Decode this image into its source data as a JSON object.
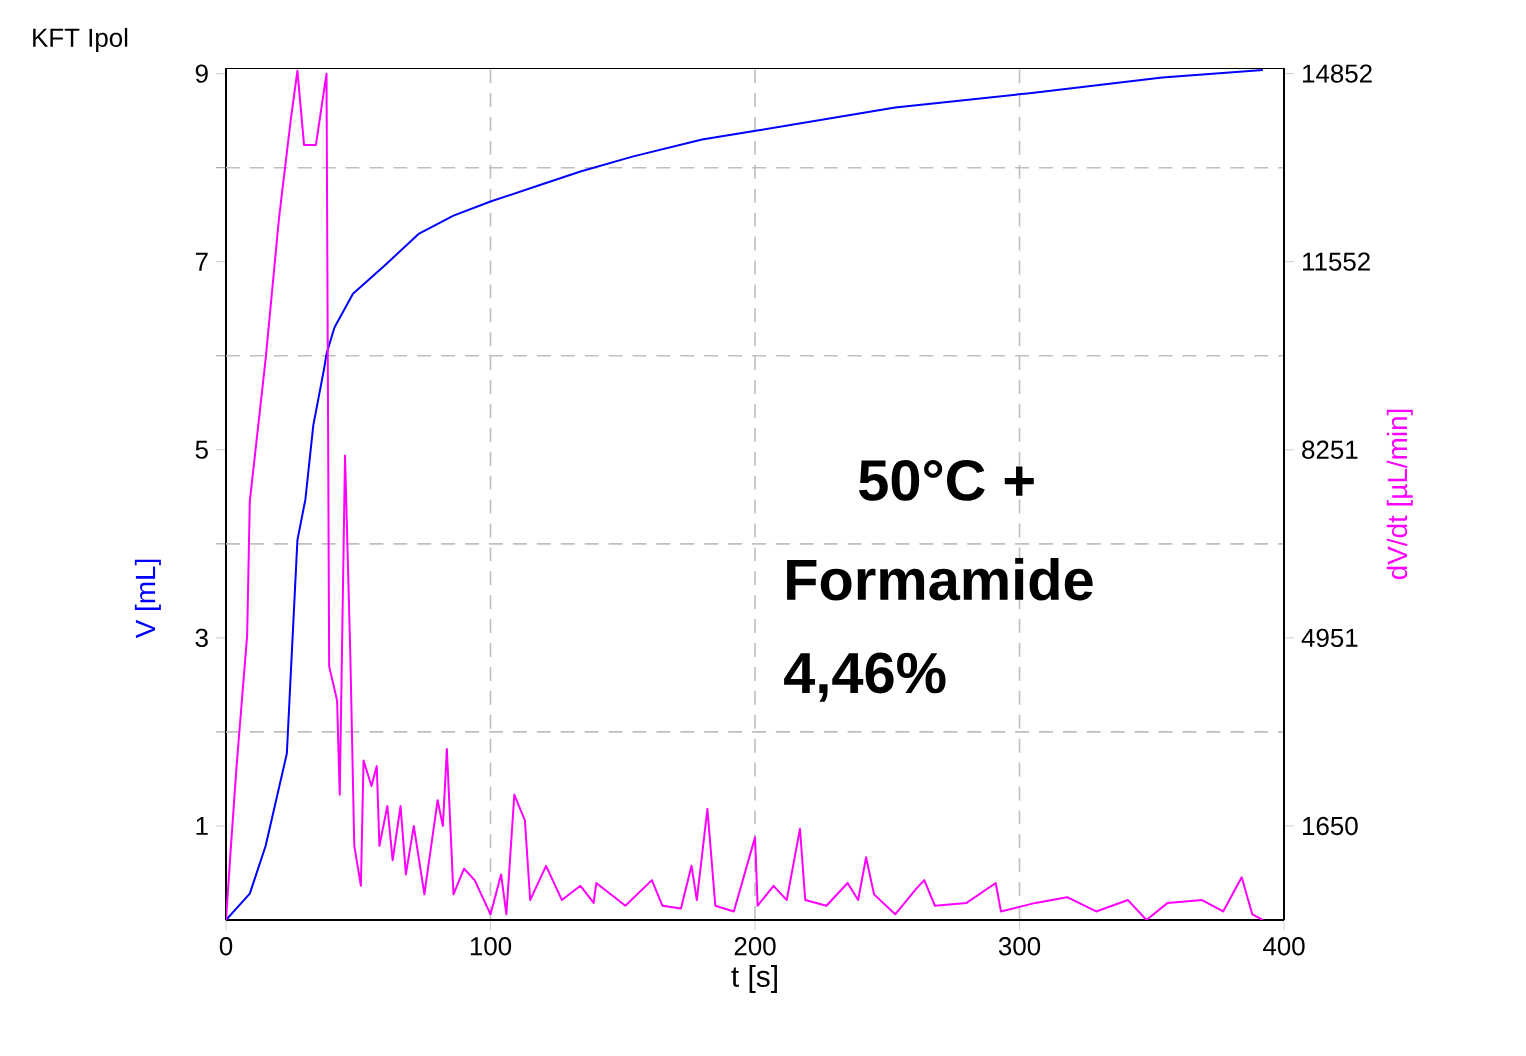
{
  "chart_data": {
    "type": "line",
    "title": "KFT Ipol",
    "xlabel": "t [s]",
    "ylabel": "V [mL]",
    "y2label": "dV/dt [µL/min]",
    "annotations": [
      "50°C +",
      "Formamide",
      "4,46%"
    ],
    "xlim": [
      0,
      400
    ],
    "xticks": [
      0,
      100,
      200,
      300,
      400
    ],
    "ylim": [
      0,
      9.06
    ],
    "yticks": [
      1,
      {
        "value": 2,
        "label": null
      },
      3,
      {
        "value": 4,
        "label": null
      },
      5,
      {
        "value": 6,
        "label": null
      },
      7,
      {
        "value": 8,
        "label": null
      },
      9
    ],
    "y2lim": [
      0,
      14950
    ],
    "y2ticks": [
      1650,
      4951,
      8251,
      11552,
      14852
    ],
    "grid": true,
    "series": [
      {
        "color": "#0000ff",
        "x": [
          0,
          9,
          15,
          23,
          27,
          30,
          33,
          37,
          38,
          41,
          48,
          60,
          73,
          86,
          100,
          117,
          134,
          154,
          180,
          202,
          253,
          303,
          354,
          392
        ],
        "values": [
          0,
          0.28,
          0.79,
          1.77,
          4.04,
          4.47,
          5.26,
          5.85,
          6.02,
          6.3,
          6.66,
          6.96,
          7.3,
          7.49,
          7.64,
          7.8,
          7.96,
          8.12,
          8.3,
          8.4,
          8.64,
          8.79,
          8.96,
          9.04
        ]
      },
      {
        "color": "#ff00ff",
        "axis": "y2",
        "x": [
          0,
          1.5,
          4,
          8,
          9,
          15,
          20,
          24.5,
          27,
          29.5,
          34,
          38,
          39,
          42,
          43,
          45,
          47,
          48.5,
          51,
          52,
          55,
          57,
          58,
          61,
          63,
          66,
          68,
          71,
          75,
          80,
          82,
          83.5,
          86,
          90,
          94,
          100,
          104,
          106,
          109,
          113,
          115,
          121,
          127,
          134,
          139,
          140,
          151,
          161,
          165,
          172,
          176,
          178,
          182,
          185,
          192,
          200,
          201,
          207,
          212,
          217,
          219,
          227,
          235,
          239,
          242,
          245,
          253,
          261,
          264,
          268,
          280,
          291,
          293,
          306,
          318,
          329,
          341,
          348,
          356,
          369,
          377,
          384,
          388,
          392
        ],
        "values": [
          0,
          1050,
          2700,
          5000,
          7350,
          9850,
          12300,
          14050,
          14900,
          13600,
          13600,
          14850,
          4450,
          3850,
          2200,
          8150,
          4650,
          1300,
          600,
          2800,
          2350,
          2700,
          1300,
          2000,
          1050,
          2000,
          800,
          1650,
          450,
          2100,
          1650,
          3000,
          450,
          900,
          700,
          100,
          800,
          100,
          2200,
          1750,
          350,
          950,
          350,
          600,
          300,
          650,
          250,
          700,
          250,
          200,
          950,
          350,
          1950,
          250,
          150,
          1450,
          250,
          600,
          350,
          1600,
          350,
          250,
          650,
          350,
          1100,
          450,
          100,
          550,
          700,
          250,
          300,
          650,
          150,
          300,
          400,
          150,
          350,
          0,
          300,
          350,
          150,
          750,
          100,
          0
        ]
      }
    ]
  }
}
